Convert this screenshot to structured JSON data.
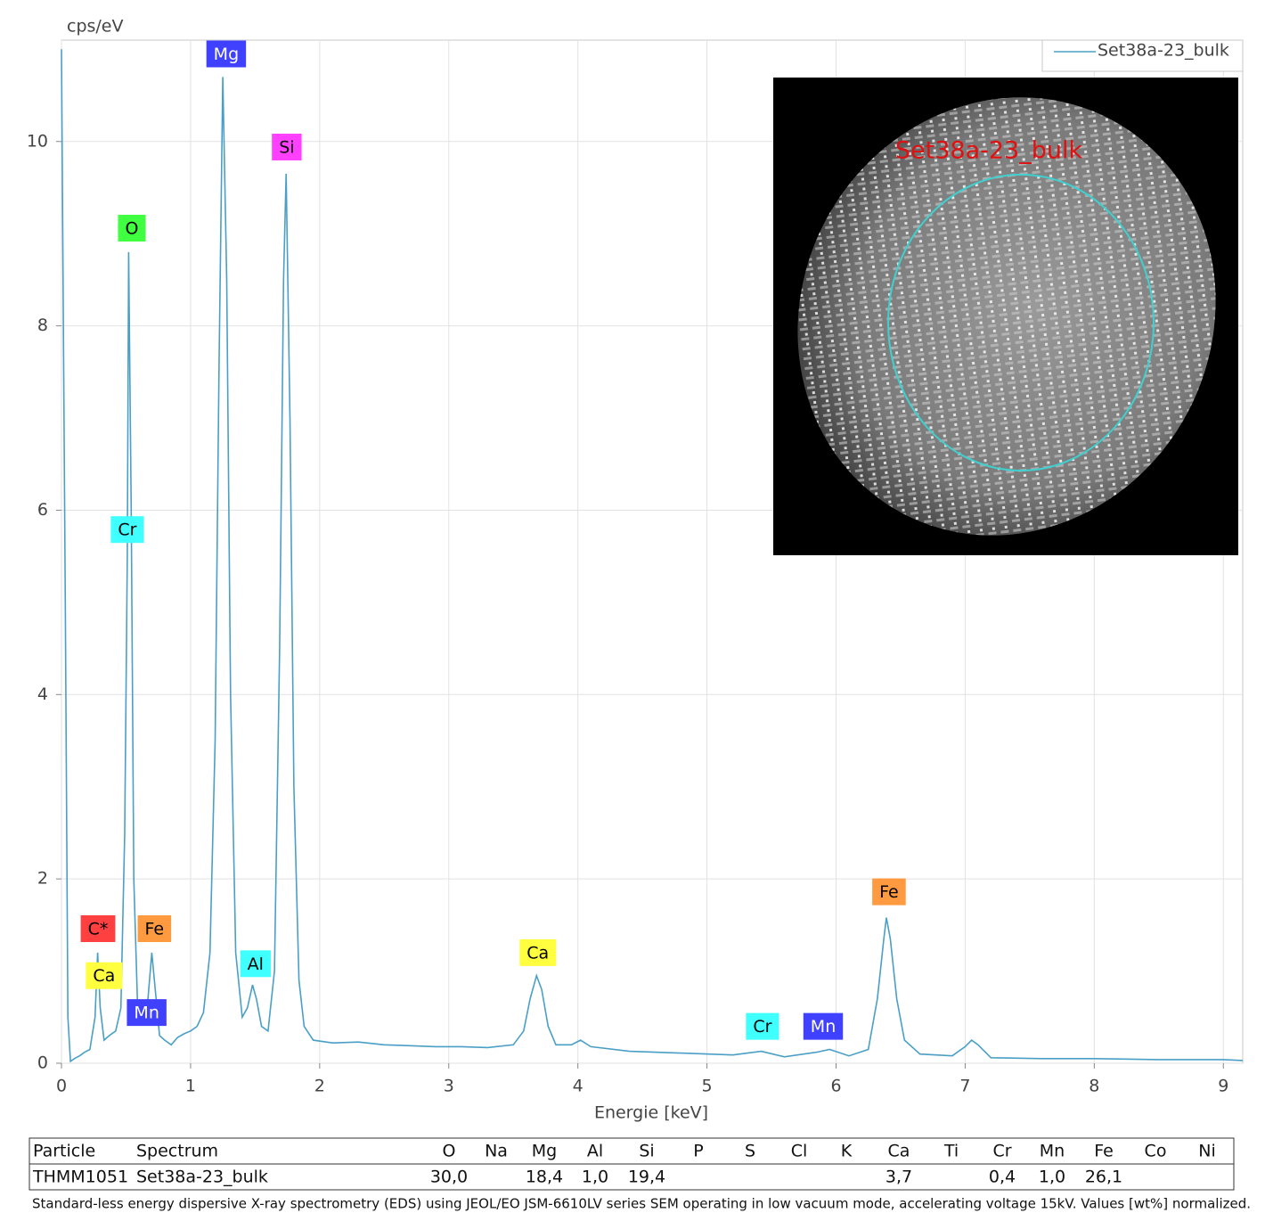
{
  "chart_data": {
    "type": "line",
    "y_label": "cps/eV",
    "x_label": "Energie [keV]",
    "xlim": [
      0,
      9.15
    ],
    "ylim": [
      0,
      11.1
    ],
    "xticks": [
      0,
      1,
      2,
      3,
      4,
      5,
      6,
      7,
      8,
      9
    ],
    "yticks": [
      0,
      2,
      4,
      6,
      8,
      10
    ],
    "grid": true,
    "legend": "upper right",
    "x": [
      0,
      0.03,
      0.05,
      0.07,
      0.1,
      0.14,
      0.18,
      0.22,
      0.26,
      0.28,
      0.3,
      0.33,
      0.37,
      0.42,
      0.46,
      0.49,
      0.51,
      0.52,
      0.54,
      0.56,
      0.59,
      0.63,
      0.67,
      0.7,
      0.72,
      0.76,
      0.8,
      0.85,
      0.9,
      0.95,
      1.0,
      1.05,
      1.1,
      1.15,
      1.19,
      1.22,
      1.25,
      1.28,
      1.31,
      1.35,
      1.4,
      1.44,
      1.48,
      1.51,
      1.55,
      1.6,
      1.65,
      1.69,
      1.72,
      1.74,
      1.77,
      1.8,
      1.84,
      1.88,
      1.95,
      2.1,
      2.3,
      2.5,
      2.7,
      2.9,
      3.1,
      3.3,
      3.5,
      3.58,
      3.63,
      3.68,
      3.72,
      3.77,
      3.83,
      3.95,
      4.02,
      4.1,
      4.4,
      4.8,
      5.2,
      5.42,
      5.6,
      5.85,
      5.95,
      6.1,
      6.25,
      6.32,
      6.37,
      6.39,
      6.42,
      6.47,
      6.53,
      6.65,
      6.9,
      7.0,
      7.05,
      7.1,
      7.2,
      7.6,
      8.0,
      8.5,
      9.0,
      9.15
    ],
    "series": [
      {
        "name": "Set38a-23_bulk",
        "color": "#4a9fc6",
        "values": [
          11.0,
          5.0,
          0.5,
          0.02,
          0.05,
          0.08,
          0.12,
          0.15,
          0.5,
          1.2,
          0.6,
          0.25,
          0.3,
          0.35,
          0.6,
          2.5,
          5.5,
          8.8,
          6.0,
          2.0,
          0.6,
          0.55,
          0.7,
          1.2,
          0.9,
          0.3,
          0.25,
          0.2,
          0.28,
          0.32,
          0.35,
          0.4,
          0.55,
          1.2,
          3.5,
          7.5,
          10.7,
          8.5,
          4.0,
          1.2,
          0.5,
          0.6,
          0.85,
          0.7,
          0.4,
          0.35,
          1.0,
          4.5,
          8.5,
          9.65,
          7.0,
          3.0,
          0.9,
          0.4,
          0.25,
          0.22,
          0.23,
          0.2,
          0.19,
          0.18,
          0.18,
          0.17,
          0.2,
          0.35,
          0.7,
          0.95,
          0.8,
          0.4,
          0.2,
          0.2,
          0.25,
          0.18,
          0.13,
          0.11,
          0.09,
          0.13,
          0.07,
          0.12,
          0.15,
          0.08,
          0.15,
          0.7,
          1.35,
          1.58,
          1.35,
          0.7,
          0.25,
          0.1,
          0.08,
          0.18,
          0.25,
          0.2,
          0.06,
          0.05,
          0.05,
          0.04,
          0.04,
          0.03
        ]
      }
    ],
    "annotations": [
      {
        "text": "C*",
        "x": 0.283,
        "y": 1.46,
        "color": "#ff4040",
        "text_color": "#000000"
      },
      {
        "text": "Ca",
        "x": 0.33,
        "y": 0.95,
        "color": "#ffff40",
        "text_color": "#000000"
      },
      {
        "text": "Cr",
        "x": 0.51,
        "y": 5.79,
        "color": "#40ffff",
        "text_color": "#000000"
      },
      {
        "text": "O",
        "x": 0.545,
        "y": 9.06,
        "color": "#40ff40",
        "text_color": "#000000"
      },
      {
        "text": "Mn",
        "x": 0.66,
        "y": 0.55,
        "color": "#4040ff",
        "text_color": "#ffffff"
      },
      {
        "text": "Fe",
        "x": 0.72,
        "y": 1.46,
        "color": "#ff9a40",
        "text_color": "#000000"
      },
      {
        "text": "Mg",
        "x": 1.276,
        "y": 10.95,
        "color": "#4040ff",
        "text_color": "#ffffff"
      },
      {
        "text": "Si",
        "x": 1.745,
        "y": 9.94,
        "color": "#ff40ff",
        "text_color": "#000000"
      },
      {
        "text": "Al",
        "x": 1.503,
        "y": 1.08,
        "color": "#40ffff",
        "text_color": "#000000"
      },
      {
        "text": "Ca",
        "x": 3.69,
        "y": 1.2,
        "color": "#ffff40",
        "text_color": "#000000"
      },
      {
        "text": "Cr",
        "x": 5.43,
        "y": 0.4,
        "color": "#40ffff",
        "text_color": "#000000"
      },
      {
        "text": "Mn",
        "x": 5.9,
        "y": 0.4,
        "color": "#4040ff",
        "text_color": "#ffffff"
      },
      {
        "text": "Fe",
        "x": 6.41,
        "y": 1.86,
        "color": "#ff9a40",
        "text_color": "#000000"
      }
    ]
  },
  "inset_image": {
    "label": "Set38a-23_bulk"
  },
  "table": {
    "header": [
      "Particle",
      "Spectrum",
      "O",
      "Na",
      "Mg",
      "Al",
      "Si",
      "P",
      "S",
      "Cl",
      "K",
      "Ca",
      "Ti",
      "Cr",
      "Mn",
      "Fe",
      "Co",
      "Ni"
    ],
    "rows": [
      [
        "THMM1051",
        "Set38a-23_bulk",
        "30,0",
        null,
        "18,4",
        "1,0",
        "19,4",
        null,
        null,
        null,
        null,
        "3,7",
        null,
        "0,4",
        "1,0",
        "26,1",
        null,
        null
      ]
    ]
  },
  "caption": "Standard-less energy dispersive X-ray spectrometry (EDS) using JEOL/EO JSM-6610LV series SEM operating in low vacuum mode, accelerating voltage 15kV. Values [wt%] normalized."
}
